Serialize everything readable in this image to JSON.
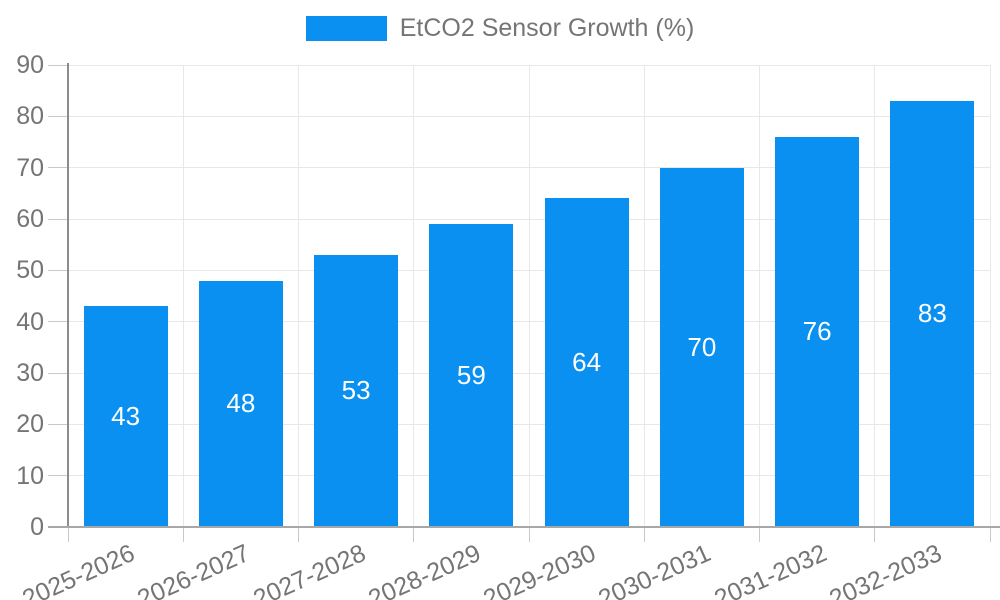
{
  "legend": {
    "label": "EtCO2 Sensor Growth (%)"
  },
  "chart_data": {
    "type": "bar",
    "title": "EtCO2 Sensor Growth (%)",
    "series_name": "EtCO2 Sensor Growth (%)",
    "categories": [
      "2025-2026",
      "2026-2027",
      "2027-2028",
      "2028-2029",
      "2029-2030",
      "2030-2031",
      "2031-2032",
      "2032-2033"
    ],
    "values": [
      43,
      48,
      53,
      59,
      64,
      70,
      76,
      83
    ],
    "xlabel": "",
    "ylabel": "",
    "ylim": [
      0,
      90
    ],
    "ytick_step": 10,
    "yticks": [
      0,
      10,
      20,
      30,
      40,
      50,
      60,
      70,
      80,
      90
    ],
    "grid": true,
    "legend_position": "top",
    "bar_color": "#0a90f0",
    "value_label_color": "#ffffff",
    "axis_text_color": "#757575",
    "gridline_color": "#e8e8e8"
  }
}
